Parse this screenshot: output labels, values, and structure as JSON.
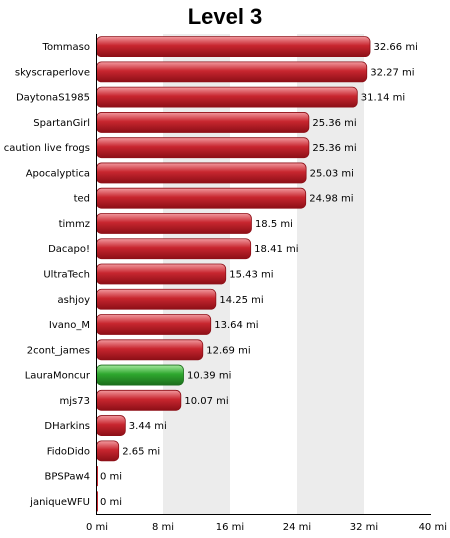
{
  "chart_data": {
    "type": "bar",
    "orientation": "horizontal",
    "title": "Level 3",
    "xlabel": "",
    "ylabel": "",
    "unit": "mi",
    "xlim": [
      0,
      40
    ],
    "ticks": [
      0,
      8,
      16,
      24,
      32,
      40
    ],
    "tick_labels": [
      "0 mi",
      "8 mi",
      "16 mi",
      "24 mi",
      "32 mi",
      "40 mi"
    ],
    "categories": [
      "Tommaso",
      "skyscraperlove",
      "DaytonaS1985",
      "SpartanGirl",
      "caution live frogs",
      "Apocalyptica",
      "ted",
      "timmz",
      "Dacapo!",
      "UltraTech",
      "ashjoy",
      "Ivano_M",
      "2cont_james",
      "LauraMoncur",
      "mjs73",
      "DHarkins",
      "FidoDido",
      "BPSPaw4",
      "janiqueWFU"
    ],
    "values": [
      32.66,
      32.27,
      31.14,
      25.36,
      25.36,
      25.03,
      24.98,
      18.5,
      18.41,
      15.43,
      14.25,
      13.64,
      12.69,
      10.39,
      10.07,
      3.44,
      2.65,
      0,
      0
    ],
    "value_labels": [
      "32.66 mi",
      "32.27 mi",
      "31.14 mi",
      "25.36 mi",
      "25.36 mi",
      "25.03 mi",
      "24.98 mi",
      "18.5 mi",
      "18.41 mi",
      "15.43 mi",
      "14.25 mi",
      "13.64 mi",
      "12.69 mi",
      "10.39 mi",
      "10.07 mi",
      "3.44 mi",
      "2.65 mi",
      "0 mi",
      "0 mi"
    ],
    "highlight_category": "LauraMoncur",
    "grid": "alternating vertical bands",
    "colors": {
      "bar": "#c8262f",
      "bar_light": "#f29a9f",
      "bar_dark": "#8d0f17",
      "highlight": "#2fa82f",
      "highlight_light": "#a6e9a0",
      "highlight_dark": "#1c6e1c",
      "band": "#ececec",
      "axis": "#000000"
    }
  }
}
